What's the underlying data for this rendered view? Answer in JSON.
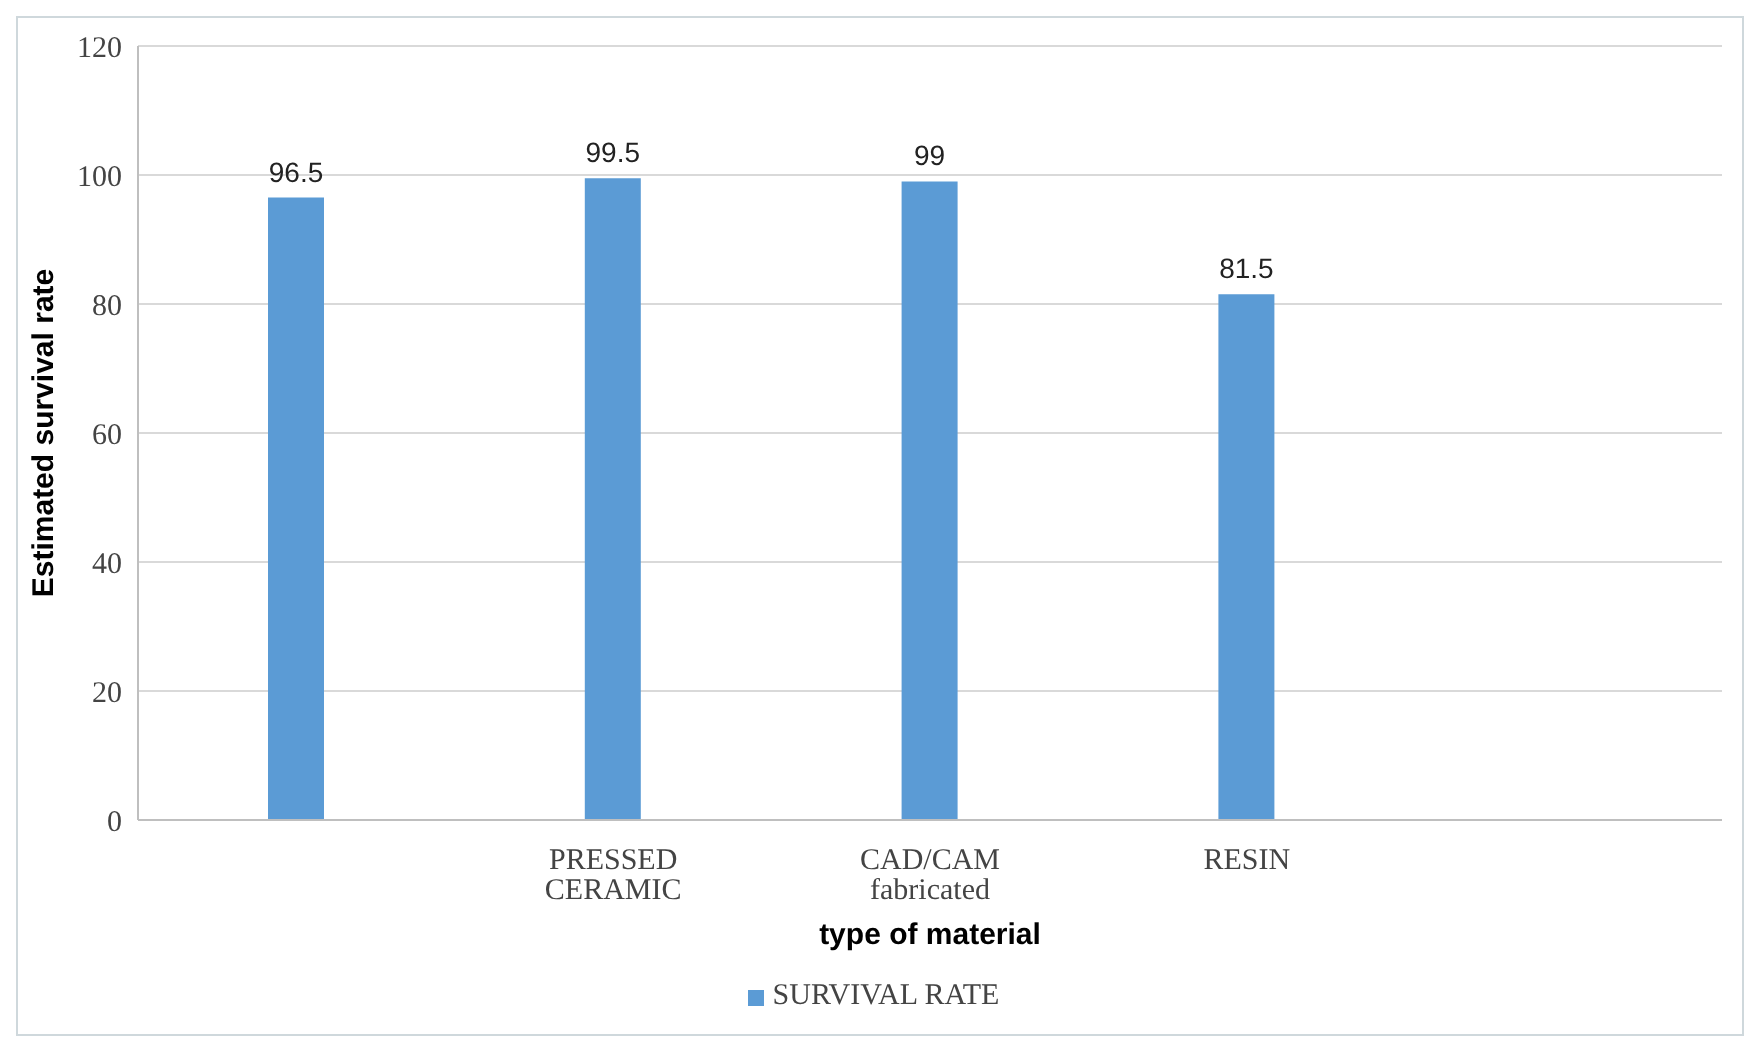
{
  "chart_data": {
    "type": "bar",
    "xlabel": "type of material",
    "ylabel": "Estimated survival rate",
    "categories": [
      null,
      "PRESSED CERAMIC",
      "CAD/CAM fabricated",
      "RESIN",
      null
    ],
    "series": [
      {
        "name": "SURVIVAL RATE",
        "color": "#5b9bd5",
        "values": [
          96.5,
          99.5,
          99,
          81.5,
          null
        ]
      }
    ],
    "ylim": [
      0,
      120
    ],
    "yticks": [
      0,
      20,
      40,
      60,
      80,
      100,
      120
    ],
    "grid": "y",
    "legend": "bottom",
    "data_labels": true
  }
}
